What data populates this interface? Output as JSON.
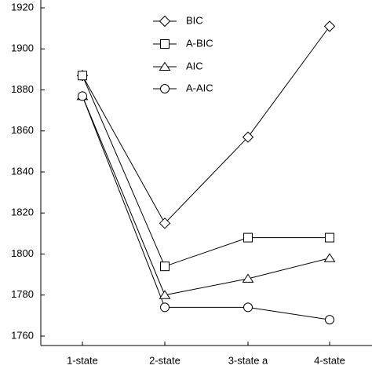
{
  "chart_data": {
    "type": "line",
    "categories": [
      "1-state",
      "2-state",
      "3-state a",
      "4-state"
    ],
    "series": [
      {
        "name": "BIC",
        "color": "#000000",
        "marker": "diamond",
        "values": [
          1887,
          1815,
          1857,
          1911
        ]
      },
      {
        "name": "A-BIC",
        "color": "#000000",
        "marker": "square",
        "values": [
          1887,
          1794,
          1808,
          1808
        ]
      },
      {
        "name": "AIC",
        "color": "#000000",
        "marker": "triangle",
        "values": [
          1877,
          1780,
          1788,
          1798
        ]
      },
      {
        "name": "A-AIC",
        "color": "#000000",
        "marker": "circle",
        "values": [
          1877,
          1774,
          1774,
          1768
        ]
      }
    ],
    "ylim": [
      1760,
      1920
    ],
    "yticks": [
      1760,
      1780,
      1800,
      1820,
      1840,
      1860,
      1880,
      1900,
      1920
    ],
    "grid": false,
    "legend": "top"
  }
}
